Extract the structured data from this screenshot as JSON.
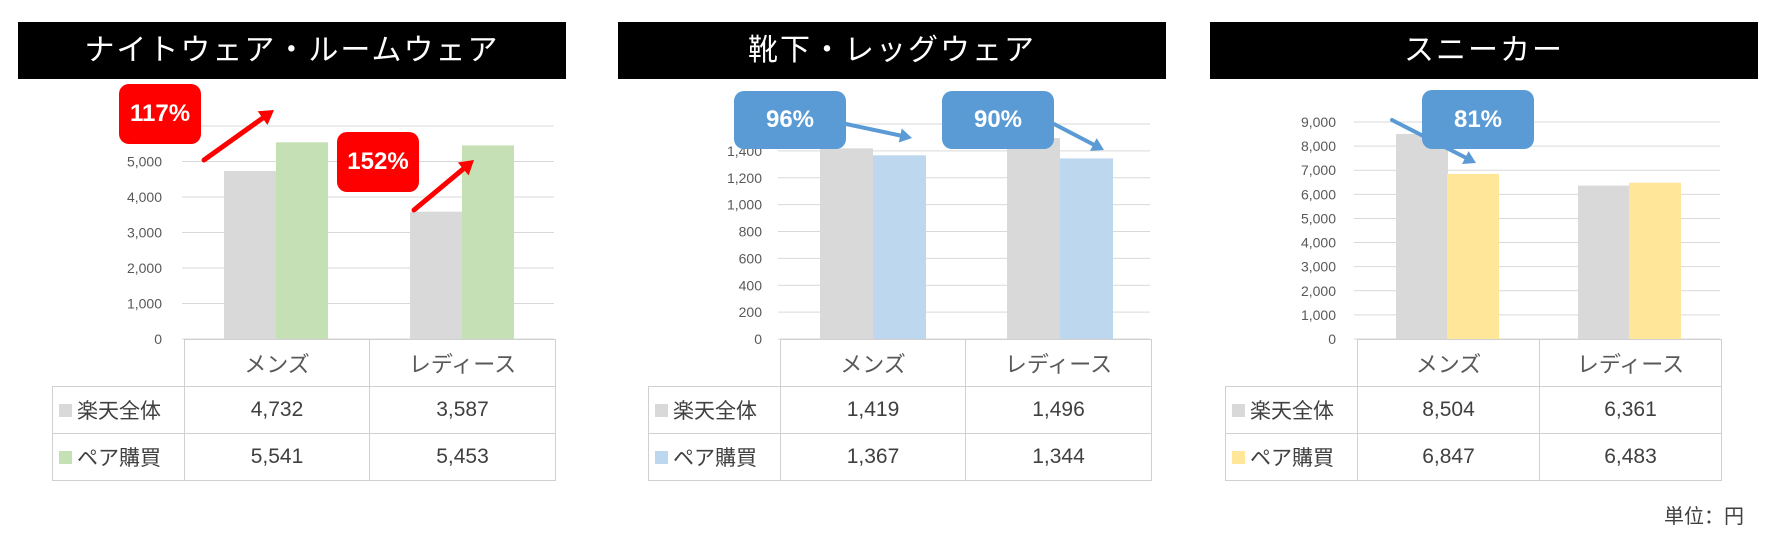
{
  "unit_label": "単位：円",
  "colors": {
    "rakuten": "#d9d9d9",
    "red": "#ff0000",
    "blue_callout": "#5b9bd5"
  },
  "chart_data": [
    {
      "type": "bar",
      "title": "ナイトウェア・ルームウェア",
      "categories": [
        "メンズ",
        "レディース"
      ],
      "series": [
        {
          "name": "楽天全体",
          "values": [
            4732,
            3587
          ],
          "display": [
            "4,732",
            "3,587"
          ],
          "color": "#d9d9d9"
        },
        {
          "name": "ペア購買",
          "values": [
            5541,
            5453
          ],
          "display": [
            "5,541",
            "5,453"
          ],
          "color": "#c5e0b4"
        }
      ],
      "yticks": [
        "0",
        "1,000",
        "2,000",
        "3,000",
        "4,000",
        "5,000"
      ],
      "ylim": [
        0,
        6000
      ],
      "grid": true,
      "annotations": [
        {
          "text": "117%",
          "color": "#ff0000",
          "category": 0
        },
        {
          "text": "152%",
          "color": "#ff0000",
          "category": 1
        }
      ]
    },
    {
      "type": "bar",
      "title": "靴下・レッグウェア",
      "categories": [
        "メンズ",
        "レディース"
      ],
      "series": [
        {
          "name": "楽天全体",
          "values": [
            1419,
            1496
          ],
          "display": [
            "1,419",
            "1,496"
          ],
          "color": "#d9d9d9"
        },
        {
          "name": "ペア購買",
          "values": [
            1367,
            1344
          ],
          "display": [
            "1,367",
            "1,344"
          ],
          "color": "#bdd7ee"
        }
      ],
      "yticks": [
        "0",
        "200",
        "400",
        "600",
        "800",
        "1,000",
        "1,200",
        "1,400"
      ],
      "ylim": [
        0,
        1600
      ],
      "grid": true,
      "annotations": [
        {
          "text": "96%",
          "color": "#5b9bd5",
          "category": 0
        },
        {
          "text": "90%",
          "color": "#5b9bd5",
          "category": 1
        }
      ]
    },
    {
      "type": "bar",
      "title": "スニーカー",
      "categories": [
        "メンズ",
        "レディース"
      ],
      "series": [
        {
          "name": "楽天全体",
          "values": [
            8504,
            6361
          ],
          "display": [
            "8,504",
            "6,361"
          ],
          "color": "#d9d9d9"
        },
        {
          "name": "ペア購買",
          "values": [
            6847,
            6483
          ],
          "display": [
            "6,847",
            "6,483"
          ],
          "color": "#ffe699"
        }
      ],
      "yticks": [
        "0",
        "1,000",
        "2,000",
        "3,000",
        "4,000",
        "5,000",
        "6,000",
        "7,000",
        "8,000",
        "9,000"
      ],
      "ylim": [
        0,
        9000
      ],
      "grid": true,
      "annotations": [
        {
          "text": "81%",
          "color": "#5b9bd5",
          "category": 0
        }
      ]
    }
  ]
}
